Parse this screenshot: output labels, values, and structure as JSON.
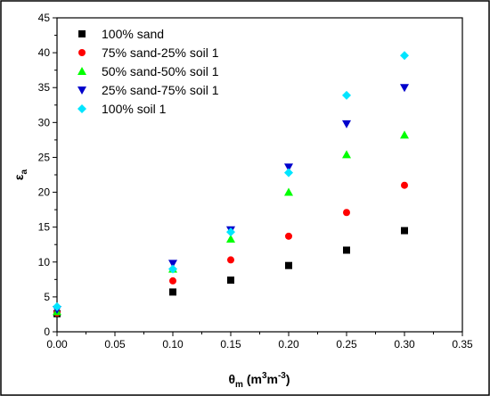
{
  "chart_data": {
    "type": "scatter",
    "title": "",
    "xlabel": {
      "main": "θ",
      "sub": "m",
      "unit_pre": " (m",
      "sup1": "3",
      "unit_mid": "m",
      "sup2": "-3",
      "unit_post": ")"
    },
    "ylabel": {
      "main": "ε",
      "sub": "a"
    },
    "xlim": [
      0,
      0.35
    ],
    "ylim": [
      0,
      45
    ],
    "xticks": [
      "0.00",
      "0.05",
      "0.10",
      "0.15",
      "0.20",
      "0.25",
      "0.30",
      "0.35"
    ],
    "yticks": [
      "0",
      "5",
      "10",
      "15",
      "20",
      "25",
      "30",
      "35",
      "40",
      "45"
    ],
    "grid": false,
    "legend_position": "top-left",
    "x": [
      0.0,
      0.1,
      0.15,
      0.2,
      0.25,
      0.3
    ],
    "series": [
      {
        "name": "100% sand",
        "marker": "square",
        "color": "#000000",
        "values": [
          2.6,
          5.7,
          7.4,
          9.5,
          11.7,
          14.5
        ]
      },
      {
        "name": "75% sand-25% soil 1",
        "marker": "circle",
        "color": "#ff0000",
        "values": [
          2.7,
          7.3,
          10.3,
          13.7,
          17.1,
          21.0
        ]
      },
      {
        "name": "50% sand-50% soil 1",
        "marker": "triangle-up",
        "color": "#00ff00",
        "values": [
          2.9,
          9.0,
          13.3,
          20.0,
          25.4,
          28.2
        ]
      },
      {
        "name": "25% sand-75% soil 1",
        "marker": "triangle-down",
        "color": "#0000cc",
        "values": [
          3.2,
          9.8,
          14.6,
          23.6,
          29.8,
          35.0
        ]
      },
      {
        "name": "100% soil 1",
        "marker": "diamond",
        "color": "#00e5ff",
        "values": [
          3.6,
          9.0,
          14.3,
          22.8,
          33.9,
          39.6
        ]
      }
    ]
  }
}
